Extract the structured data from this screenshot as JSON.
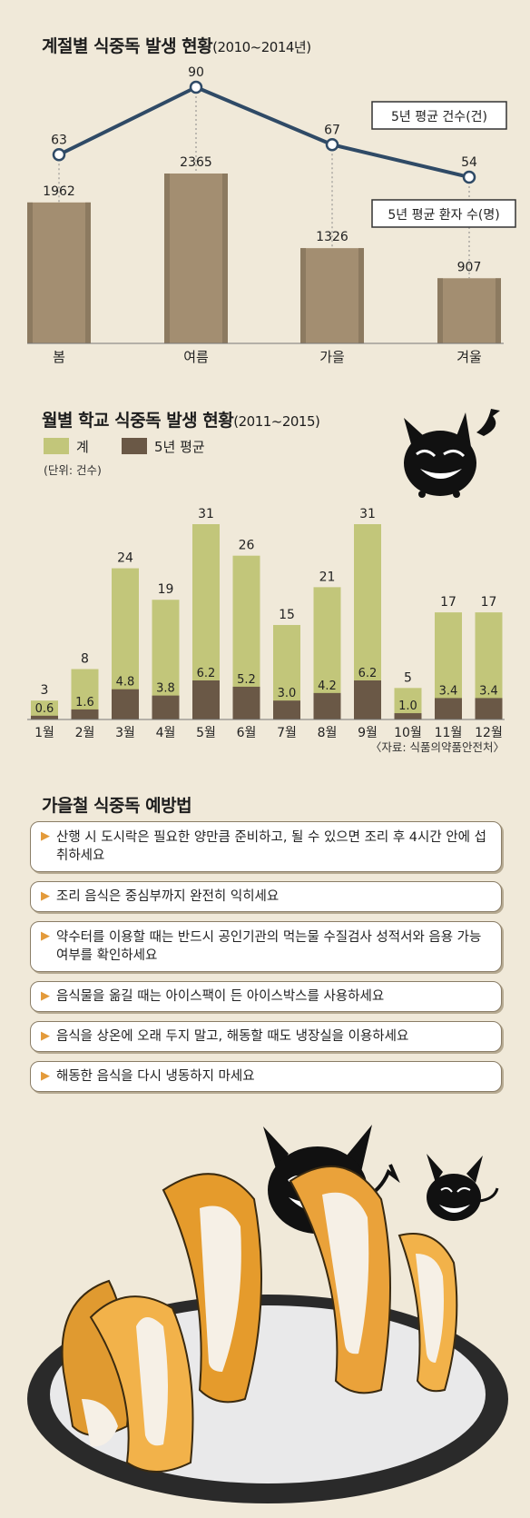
{
  "colors": {
    "bg": "#f0e9d9",
    "bar_brown": "#a38e71",
    "line_navy": "#2f4a66",
    "monthly_total": "#c2c67a",
    "monthly_avg": "#6a5846",
    "tip_arrow": "#e39a3a"
  },
  "section1": {
    "title": "계절별 식중독 발생 현황",
    "title_sub": "(2010~2014년)",
    "legend_cases": "5년 평균 건수(건)",
    "legend_patients": "5년 평균 환자 수(명)"
  },
  "section2": {
    "title": "월별 학교 식중독 발생 현황",
    "title_sub": "(2011~2015)",
    "legend_total": "계",
    "legend_avg": "5년 평균",
    "unit": "(단위: 건수)",
    "source": "〈자료: 식품의약품안전처〉"
  },
  "section3": {
    "title": "가을철 식중독 예방법",
    "tips": [
      "산행 시 도시락은 필요한 양만큼 준비하고, 될 수 있으면 조리 후 4시간 안에 섭취하세요",
      "조리 음식은 중심부까지 완전히 익히세요",
      "약수터를 이용할 때는 반드시 공인기관의 먹는물 수질검사 성적서와 음용 가능 여부를 확인하세요",
      "음식물을 옮길 때는 아이스팩이 든 아이스박스를 사용하세요",
      "음식을 상온에 오래 두지 말고, 해동할 때도 냉장실을 이용하세요",
      "해동한 음식을 다시 냉동하지 마세요"
    ]
  },
  "chart_data": [
    {
      "type": "bar",
      "title": "계절별 식중독 발생 현황(2010~2014년)",
      "categories": [
        "봄",
        "여름",
        "가을",
        "겨울"
      ],
      "series": [
        {
          "name": "5년 평균 환자 수(명)",
          "type": "bar",
          "values": [
            1962,
            2365,
            1326,
            907
          ]
        },
        {
          "name": "5년 평균 건수(건)",
          "type": "line",
          "values": [
            63,
            90,
            67,
            54
          ]
        }
      ]
    },
    {
      "type": "bar",
      "title": "월별 학교 식중독 발생 현황(2011~2015)",
      "unit": "(단위: 건수)",
      "categories": [
        "1월",
        "2월",
        "3월",
        "4월",
        "5월",
        "6월",
        "7월",
        "8월",
        "9월",
        "10월",
        "11월",
        "12월"
      ],
      "series": [
        {
          "name": "계",
          "values": [
            3,
            8,
            24,
            19,
            31,
            26,
            15,
            21,
            31,
            5,
            17,
            17
          ]
        },
        {
          "name": "5년 평균",
          "values": [
            0.6,
            1.6,
            4.8,
            3.8,
            6.2,
            5.2,
            3.0,
            4.2,
            6.2,
            1.0,
            3.4,
            3.4
          ],
          "labels": [
            "0.6",
            "1.6",
            "4.8",
            "3.8",
            "6.2",
            "5.2",
            "3.0",
            "4.2",
            "6.2",
            "1.0",
            "3.4",
            "3.4"
          ]
        }
      ]
    }
  ]
}
